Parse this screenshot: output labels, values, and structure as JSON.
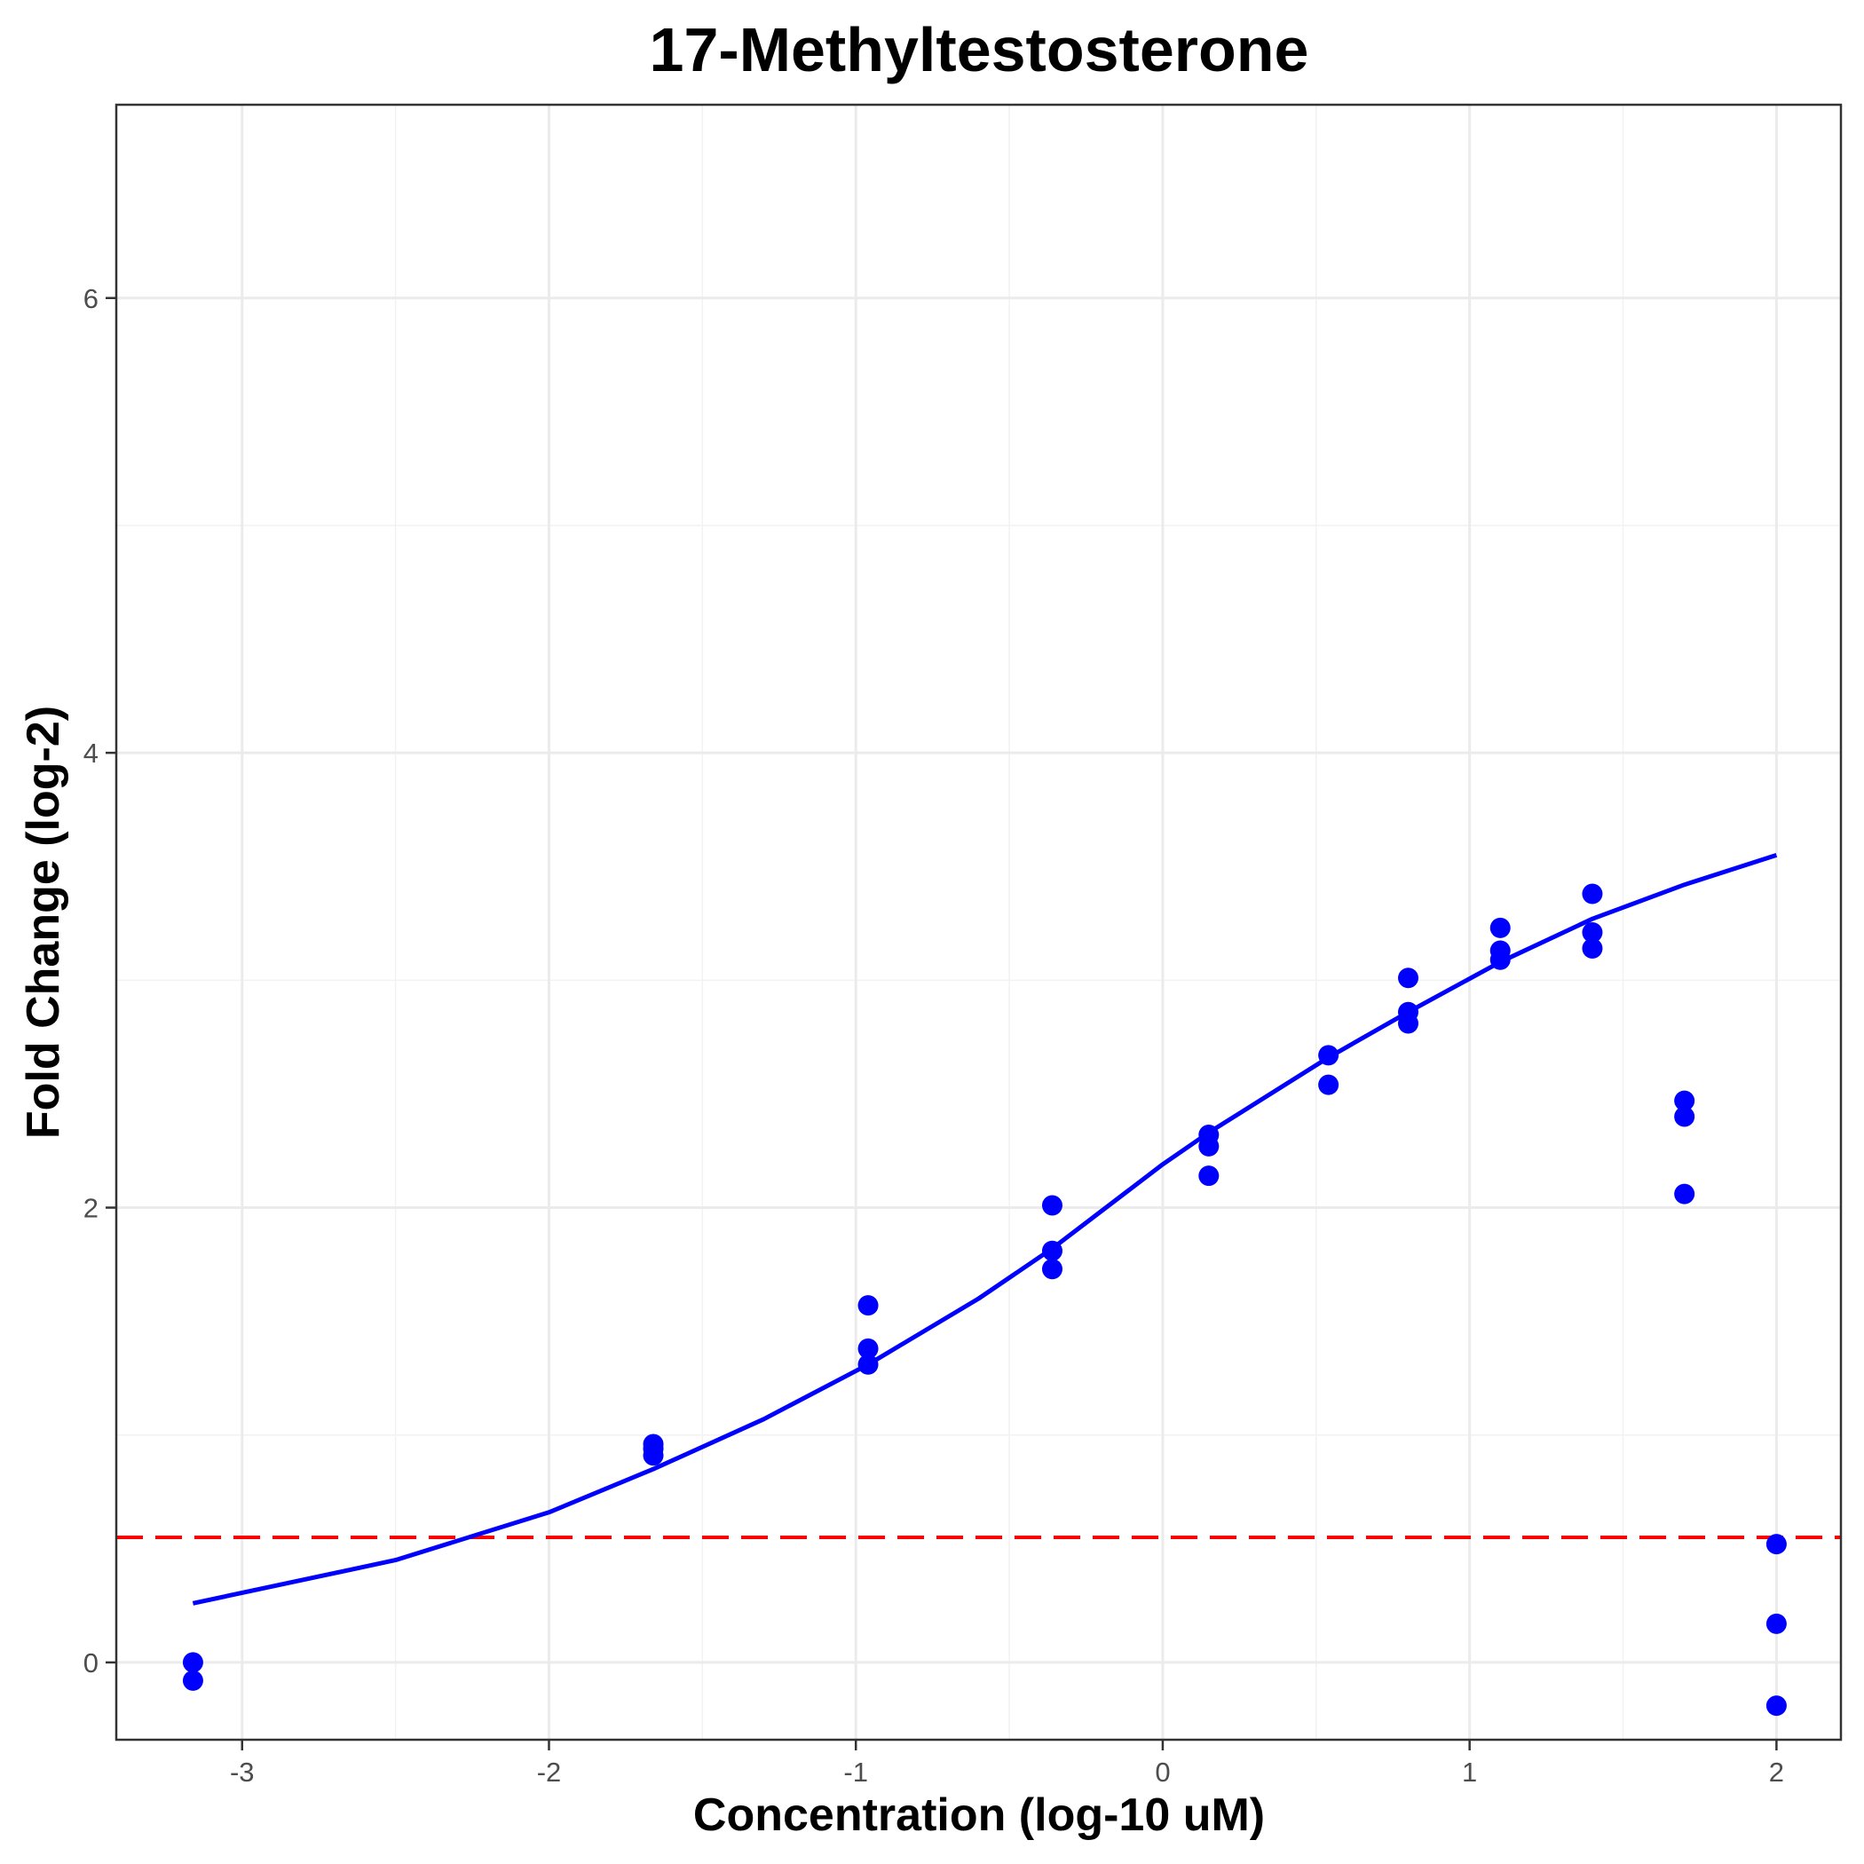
{
  "chart_data": {
    "type": "scatter",
    "title": "17-Methyltestosterone",
    "xlabel": "Concentration (log-10 uM)",
    "ylabel": "Fold Change (log-2)",
    "xlim": [
      -3.41,
      2.21
    ],
    "ylim": [
      -0.34,
      6.85
    ],
    "x_ticks": [
      -3,
      -2,
      -1,
      0,
      1,
      2
    ],
    "x_tick_labels": [
      "-3",
      "-2",
      "-1",
      "0",
      "1",
      "2"
    ],
    "y_ticks": [
      0,
      2,
      4,
      6
    ],
    "y_tick_labels": [
      "0",
      "2",
      "4",
      "6"
    ],
    "grid": true,
    "legend": "none",
    "colors": {
      "points": "#0000ff",
      "fit_line": "#0000ff",
      "threshold": "#ff0000"
    },
    "points": [
      {
        "x": -3.16,
        "y": 0.0
      },
      {
        "x": -3.16,
        "y": -0.08
      },
      {
        "x": -1.66,
        "y": 0.96
      },
      {
        "x": -1.66,
        "y": 0.94
      },
      {
        "x": -1.66,
        "y": 0.91
      },
      {
        "x": -0.96,
        "y": 1.57
      },
      {
        "x": -0.96,
        "y": 1.38
      },
      {
        "x": -0.96,
        "y": 1.31
      },
      {
        "x": -0.36,
        "y": 2.01
      },
      {
        "x": -0.36,
        "y": 1.81
      },
      {
        "x": -0.36,
        "y": 1.73
      },
      {
        "x": 0.15,
        "y": 2.32
      },
      {
        "x": 0.15,
        "y": 2.27
      },
      {
        "x": 0.15,
        "y": 2.14
      },
      {
        "x": 0.54,
        "y": 2.67
      },
      {
        "x": 0.54,
        "y": 2.54
      },
      {
        "x": 0.8,
        "y": 3.01
      },
      {
        "x": 0.8,
        "y": 2.86
      },
      {
        "x": 0.8,
        "y": 2.81
      },
      {
        "x": 1.1,
        "y": 3.23
      },
      {
        "x": 1.1,
        "y": 3.13
      },
      {
        "x": 1.1,
        "y": 3.09
      },
      {
        "x": 1.4,
        "y": 3.38
      },
      {
        "x": 1.4,
        "y": 3.21
      },
      {
        "x": 1.4,
        "y": 3.14
      },
      {
        "x": 1.7,
        "y": 2.47
      },
      {
        "x": 1.7,
        "y": 2.4
      },
      {
        "x": 1.7,
        "y": 2.06
      },
      {
        "x": 2.0,
        "y": 0.52
      },
      {
        "x": 2.0,
        "y": 0.17
      },
      {
        "x": 2.0,
        "y": -0.19
      }
    ],
    "fit_curve": {
      "x": [
        -3.16,
        -2.5,
        -2.0,
        -1.66,
        -1.3,
        -0.96,
        -0.6,
        -0.36,
        0.0,
        0.15,
        0.54,
        0.8,
        1.1,
        1.4,
        1.7,
        2.0
      ],
      "y": [
        0.26,
        0.45,
        0.66,
        0.85,
        1.07,
        1.31,
        1.6,
        1.82,
        2.19,
        2.33,
        2.66,
        2.86,
        3.08,
        3.27,
        3.42,
        3.55
      ]
    },
    "threshold": {
      "y": 0.55,
      "style": "dashed"
    }
  }
}
